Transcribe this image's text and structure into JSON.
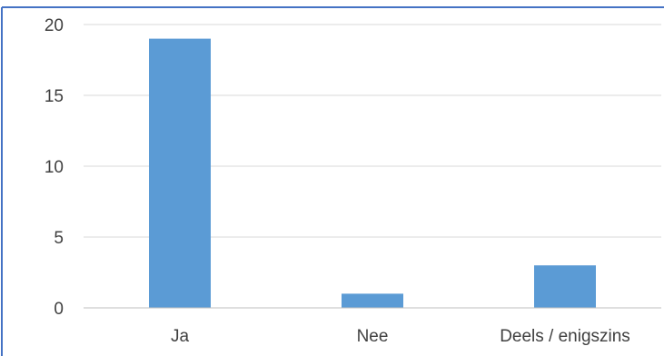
{
  "chart_data": {
    "type": "bar",
    "title": "",
    "xlabel": "",
    "ylabel": "",
    "categories": [
      "Ja",
      "Nee",
      "Deels / enigszins"
    ],
    "values": [
      19,
      1,
      3
    ],
    "ylim": [
      0,
      20
    ],
    "yticks": [
      0,
      5,
      10,
      15,
      20
    ],
    "grid": true,
    "legend": "none",
    "colors": {
      "bar": "#5B9BD5",
      "grid": "#D9D9D9",
      "axis": "#BFBFBF",
      "frame": "#4472C4",
      "text": "#404040"
    }
  }
}
